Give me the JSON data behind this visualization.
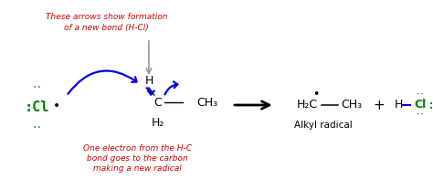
{
  "bg_color": "#ffffff",
  "red_color": "#cc0000",
  "green_color": "#008000",
  "blue_color": "#0000ee",
  "black_color": "#000000",
  "gray_color": "#999999",
  "title_text1": "These arrows show formation",
  "title_text2": "of a new bond (H-Cl)",
  "bottom_text1": "One electron from the H-C",
  "bottom_text2": "bond goes to the carbon",
  "bottom_text3": "making a new radical",
  "alkyl_label": "Alkyl radical"
}
